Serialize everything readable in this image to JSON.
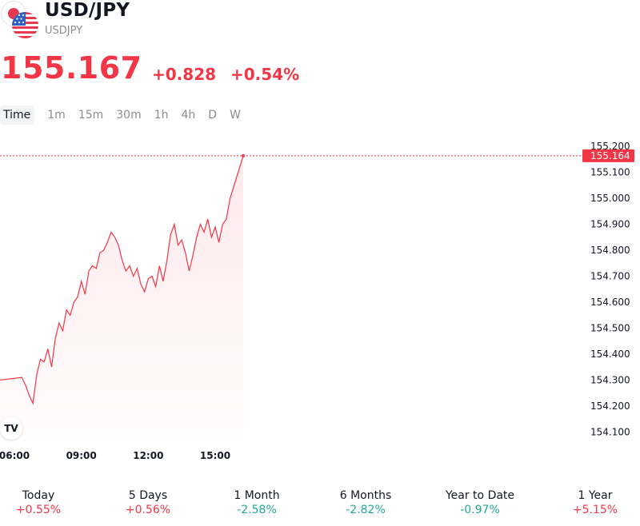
{
  "header": {
    "title": "USD/JPY",
    "ticker": "USDJPY",
    "price": "155.167",
    "change_abs": "+0.828",
    "change_pct": "+0.54%"
  },
  "tabs": [
    "Time",
    "1m",
    "15m",
    "30m",
    "1h",
    "4h",
    "D",
    "W"
  ],
  "active_tab": "Time",
  "chart_data": {
    "type": "area",
    "title": "",
    "xlabel": "",
    "ylabel": "",
    "x_ticks": [
      "06:00",
      "09:00",
      "12:00",
      "15:00"
    ],
    "y_ticks": [
      "155.200",
      "155.100",
      "155.000",
      "154.900",
      "154.800",
      "154.700",
      "154.600",
      "154.500",
      "154.400",
      "154.300",
      "154.200",
      "154.100"
    ],
    "ylim": [
      154.07,
      155.21
    ],
    "last_price_label": "155.164",
    "last_price": 155.164,
    "series": [
      {
        "x": [
          "06:00",
          "06:20",
          "06:30",
          "06:40",
          "06:50",
          "07:00",
          "07:10",
          "07:20",
          "07:30",
          "07:40",
          "07:50",
          "08:00",
          "08:10",
          "08:20",
          "08:30",
          "08:40",
          "08:50",
          "09:00",
          "09:10",
          "09:20",
          "09:30",
          "09:40",
          "09:50",
          "10:00",
          "10:10",
          "10:20",
          "10:30",
          "10:40",
          "10:50",
          "11:00",
          "11:10",
          "11:20",
          "11:30",
          "11:40",
          "11:50",
          "12:00",
          "12:10",
          "12:20",
          "12:30",
          "12:40",
          "12:50",
          "13:00",
          "13:10",
          "13:20",
          "13:30",
          "13:40",
          "13:50",
          "14:00",
          "14:10",
          "14:20",
          "14:30",
          "14:40",
          "14:50",
          "15:00",
          "15:10",
          "15:20",
          "15:30",
          "15:40",
          "15:50"
        ],
        "values": [
          154.3,
          154.31,
          154.28,
          154.24,
          154.21,
          154.32,
          154.38,
          154.37,
          154.42,
          154.35,
          154.46,
          154.52,
          154.49,
          154.57,
          154.55,
          154.6,
          154.62,
          154.68,
          154.63,
          154.72,
          154.74,
          154.73,
          154.79,
          154.8,
          154.83,
          154.87,
          154.85,
          154.82,
          154.76,
          154.72,
          154.74,
          154.7,
          154.73,
          154.67,
          154.64,
          154.69,
          154.7,
          154.66,
          154.74,
          154.68,
          154.76,
          154.86,
          154.9,
          154.82,
          154.84,
          154.79,
          154.72,
          154.78,
          154.85,
          154.9,
          154.87,
          154.92,
          154.85,
          154.89,
          154.83,
          154.9,
          154.92,
          155.0,
          155.164
        ]
      }
    ],
    "colors": {
      "line": "#f23645",
      "fill": "#fde7ea"
    }
  },
  "performance": [
    {
      "label": "Today",
      "value": "+0.55%"
    },
    {
      "label": "5 Days",
      "value": "+0.56%"
    },
    {
      "label": "1 Month",
      "value": "-2.58%"
    },
    {
      "label": "6 Months",
      "value": "-2.82%"
    },
    {
      "label": "Year to Date",
      "value": "-0.97%"
    },
    {
      "label": "1 Year",
      "value": "+5.15%"
    }
  ],
  "branding": {
    "logo": "TV"
  },
  "icons": {
    "base_flag": "us-flag-icon",
    "quote_flag": "jp-flag-icon"
  }
}
